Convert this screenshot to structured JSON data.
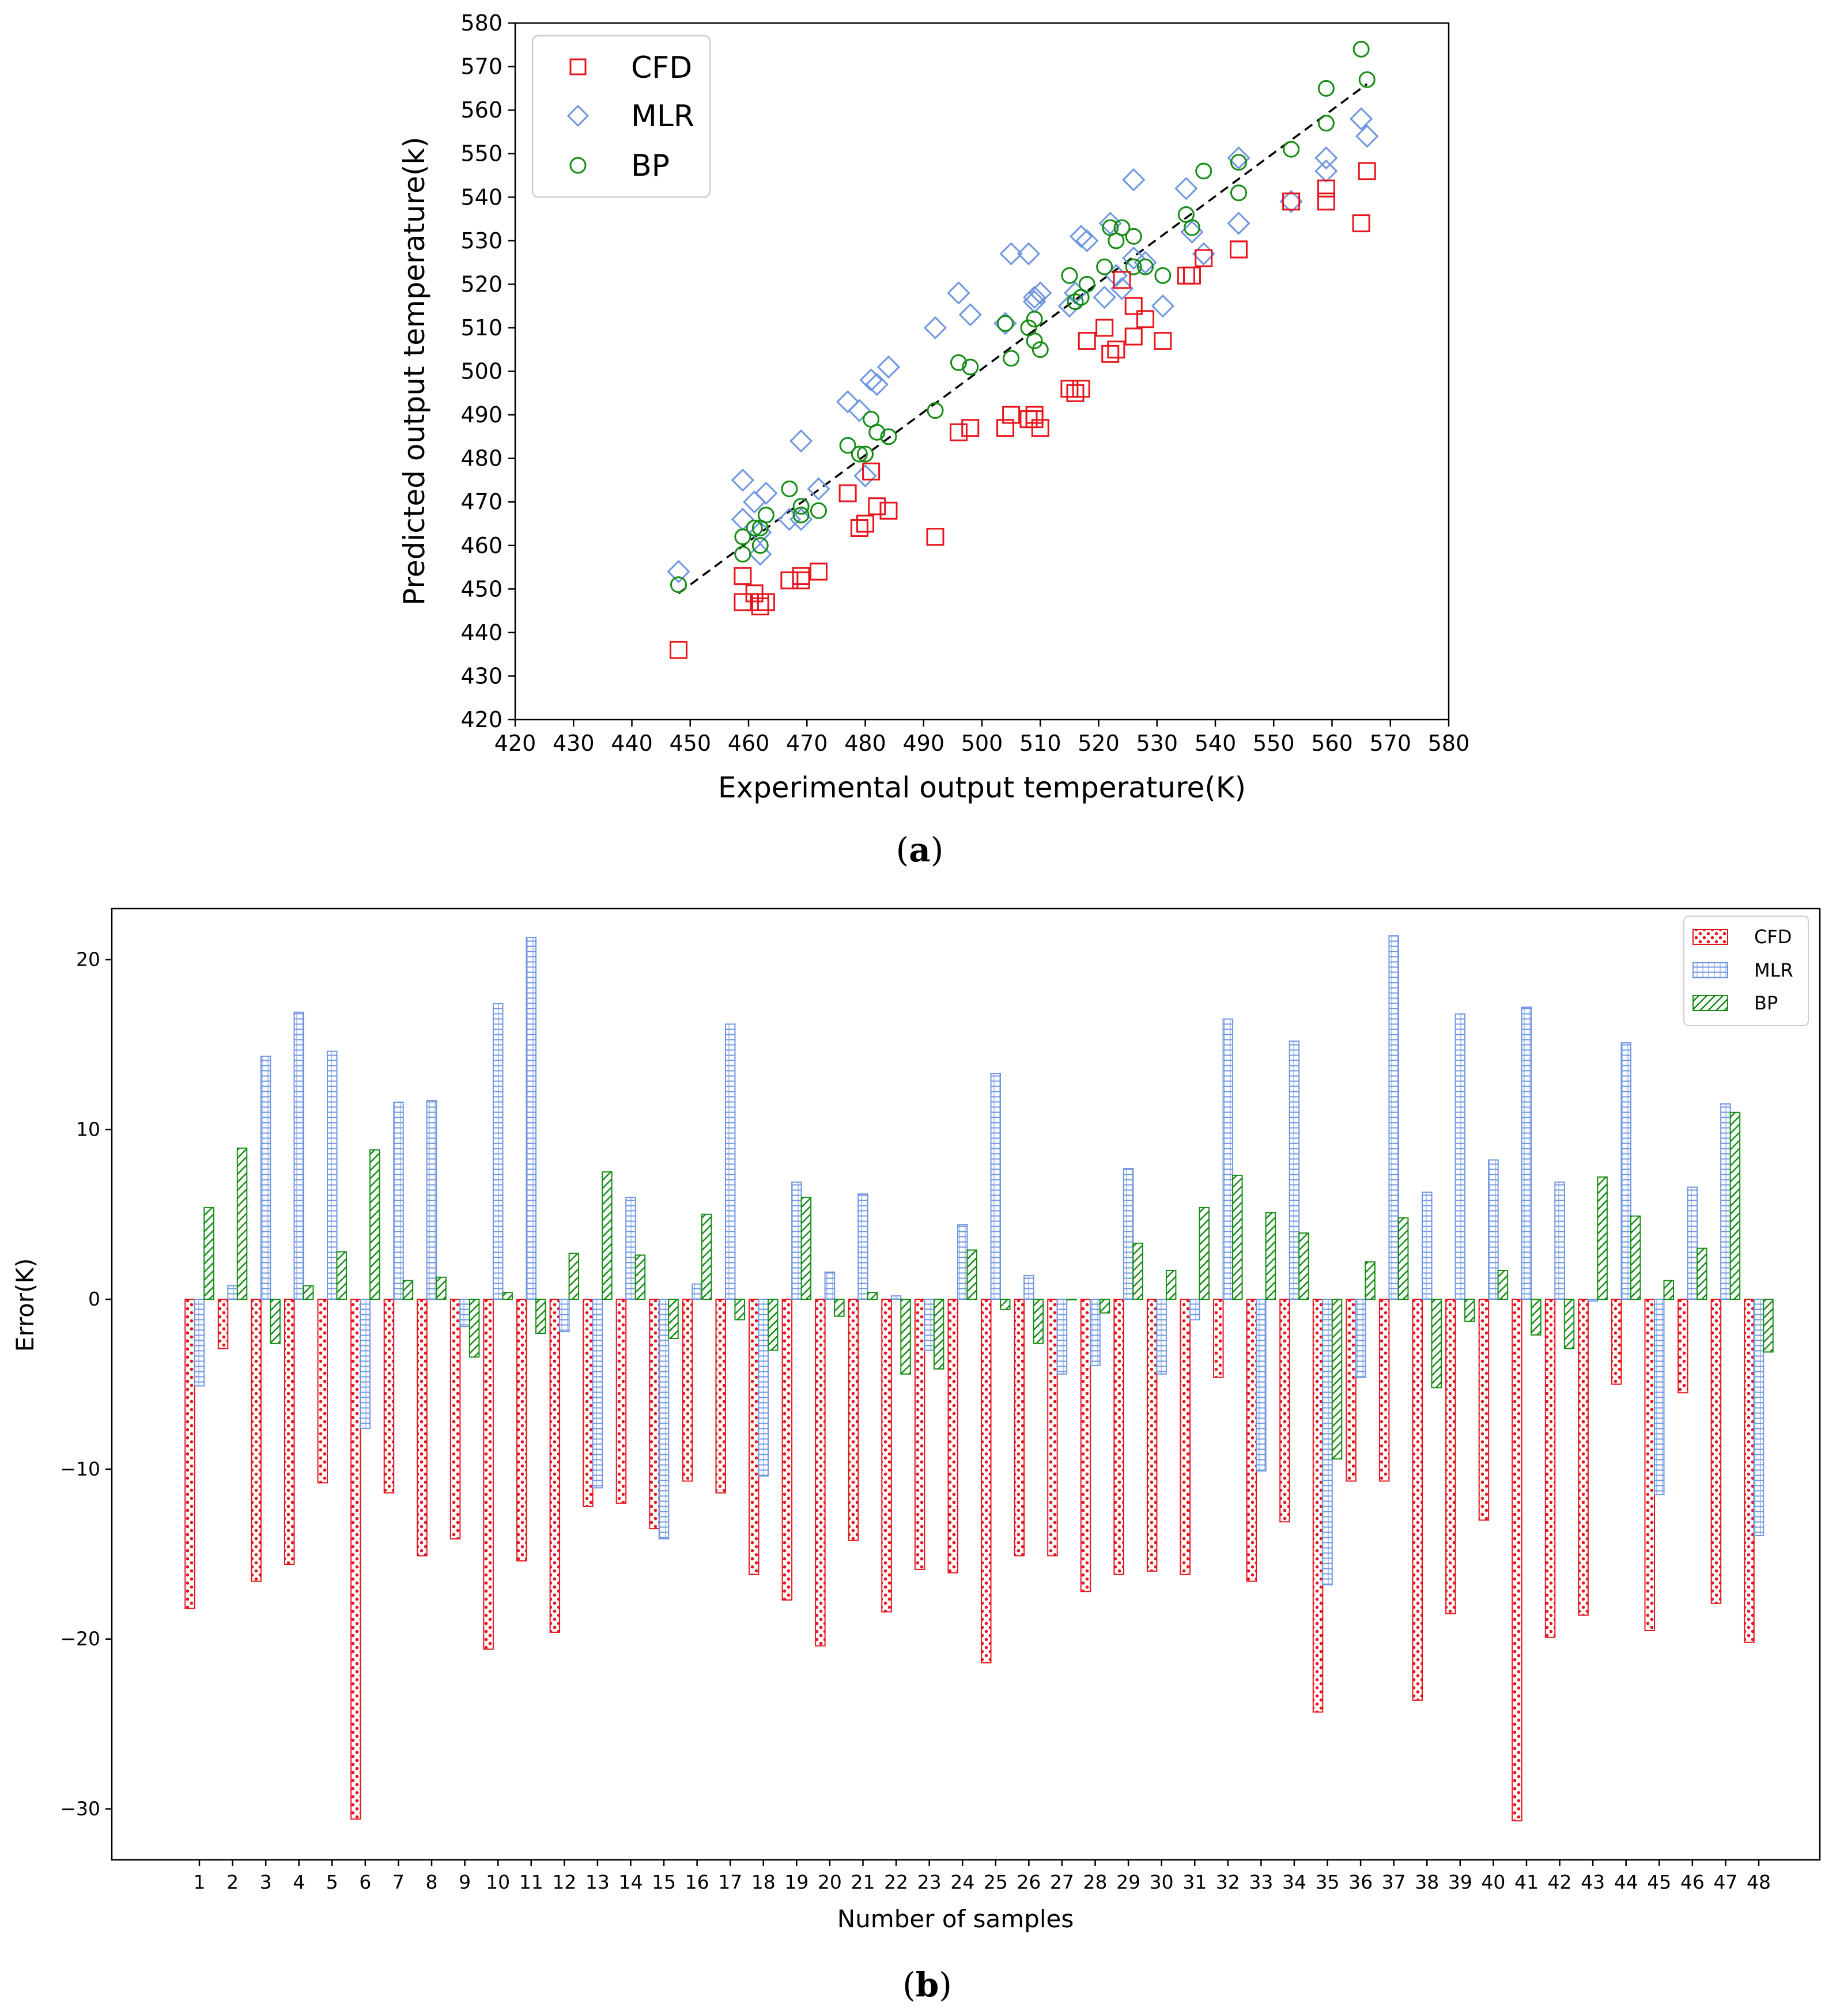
{
  "chart_data": [
    {
      "type": "scatter",
      "panel_label": "a",
      "xlabel": "Experimental output temperature(K)",
      "ylabel": "Predicted output temperature(k)",
      "xlim": [
        420,
        580
      ],
      "ylim": [
        420,
        580
      ],
      "ticks": [
        "420",
        "430",
        "440",
        "450",
        "460",
        "470",
        "480",
        "490",
        "500",
        "510",
        "520",
        "530",
        "540",
        "550",
        "560",
        "570",
        "580"
      ],
      "legend_position": "upper-left",
      "reference_line": {
        "style": "dashed",
        "color": "#000000",
        "from": [
          448,
          449
        ],
        "to": [
          566,
          566
        ]
      },
      "series": [
        {
          "name": "CFD",
          "marker": "square",
          "color": "#e8141c",
          "x": [
            448,
            459,
            459,
            461,
            462,
            462,
            463,
            467,
            469,
            469,
            472,
            477,
            479,
            480,
            481,
            482,
            484,
            492,
            496,
            498,
            504,
            505,
            508,
            509,
            509,
            510,
            515,
            516,
            517,
            518,
            521,
            522,
            523,
            524,
            526,
            526,
            528,
            531,
            535,
            536,
            538,
            544,
            544,
            553,
            559,
            559,
            565,
            566
          ],
          "y": [
            436,
            447,
            453,
            449,
            447,
            446,
            447,
            452,
            452,
            453,
            454,
            472,
            464,
            465,
            477,
            469,
            468,
            462,
            486,
            487,
            487,
            490,
            489,
            489,
            490,
            487,
            496,
            495,
            496,
            507,
            510,
            504,
            505,
            521,
            515,
            508,
            512,
            507,
            522,
            522,
            526,
            528,
            528,
            539,
            542,
            539,
            534,
            546
          ]
        },
        {
          "name": "MLR",
          "marker": "diamond",
          "color": "#6f96e0",
          "x": [
            448,
            459,
            459,
            461,
            462,
            462,
            463,
            467,
            469,
            469,
            472,
            477,
            479,
            480,
            481,
            482,
            484,
            492,
            496,
            498,
            504,
            505,
            508,
            509,
            509,
            510,
            515,
            516,
            517,
            518,
            521,
            522,
            523,
            524,
            526,
            526,
            528,
            531,
            535,
            536,
            538,
            544,
            544,
            553,
            559,
            559,
            565,
            566
          ],
          "y": [
            454,
            475,
            466,
            470,
            458,
            463,
            472,
            466,
            484,
            466,
            473,
            493,
            491,
            476,
            498,
            497,
            501,
            510,
            518,
            513,
            511,
            527,
            527,
            516,
            517,
            518,
            515,
            518,
            531,
            530,
            517,
            534,
            522,
            519,
            526,
            544,
            525,
            515,
            542,
            532,
            527,
            549,
            534,
            539,
            549,
            546,
            558,
            554
          ]
        },
        {
          "name": "BP",
          "marker": "circle",
          "color": "#148c14",
          "x": [
            448,
            459,
            459,
            461,
            462,
            462,
            463,
            467,
            469,
            469,
            472,
            477,
            479,
            480,
            481,
            482,
            484,
            492,
            496,
            498,
            504,
            505,
            508,
            509,
            509,
            510,
            515,
            516,
            517,
            518,
            521,
            522,
            523,
            524,
            526,
            526,
            528,
            531,
            535,
            536,
            538,
            544,
            544,
            553,
            559,
            559,
            565,
            566
          ],
          "y": [
            451,
            462,
            458,
            464,
            464,
            460,
            467,
            473,
            469,
            467,
            468,
            483,
            481,
            481,
            489,
            486,
            485,
            491,
            502,
            501,
            511,
            503,
            510,
            512,
            507,
            505,
            522,
            516,
            517,
            520,
            524,
            533,
            530,
            533,
            531,
            524,
            524,
            522,
            536,
            533,
            546,
            548,
            541,
            551,
            565,
            557,
            574,
            567
          ]
        }
      ]
    },
    {
      "type": "bar",
      "panel_label": "b",
      "xlabel": "Number of samples",
      "ylabel": "Error(K)",
      "ylim": [
        -33,
        23
      ],
      "yticks": [
        "20",
        "10",
        "0",
        "−10",
        "−20",
        "−30"
      ],
      "ytick_values": [
        20,
        10,
        0,
        -10,
        -20,
        -30
      ],
      "legend_position": "upper-right",
      "categories": [
        "1",
        "2",
        "3",
        "4",
        "5",
        "6",
        "7",
        "8",
        "9",
        "10",
        "11",
        "12",
        "13",
        "14",
        "15",
        "16",
        "17",
        "18",
        "19",
        "20",
        "21",
        "22",
        "23",
        "24",
        "25",
        "26",
        "27",
        "28",
        "29",
        "30",
        "31",
        "32",
        "33",
        "34",
        "35",
        "36",
        "37",
        "38",
        "39",
        "40",
        "41",
        "42",
        "43",
        "44",
        "45",
        "46",
        "47",
        "48"
      ],
      "series": [
        {
          "name": "CFD",
          "hatch": "dots",
          "color": "#e8141c",
          "values": [
            -18.2,
            -2.9,
            -16.6,
            -15.6,
            -10.8,
            -30.6,
            -11.4,
            -15.1,
            -14.1,
            -20.6,
            -15.4,
            -19.6,
            -12.2,
            -12.0,
            -13.5,
            -10.7,
            -11.4,
            -16.2,
            -17.7,
            -20.4,
            -14.2,
            -18.4,
            -15.9,
            -16.1,
            -21.4,
            -15.1,
            -15.1,
            -17.2,
            -16.2,
            -16.0,
            -16.2,
            -4.6,
            -16.6,
            -13.1,
            -24.3,
            -10.7,
            -10.7,
            -23.6,
            -18.5,
            -13.0,
            -30.7,
            -19.9,
            -18.6,
            -5.0,
            -19.5,
            -5.5,
            -17.9,
            -20.2
          ]
        },
        {
          "name": "MLR",
          "hatch": "horizontal",
          "color": "#6f96e0",
          "values": [
            -5.1,
            0.8,
            14.3,
            16.9,
            14.6,
            -7.6,
            11.6,
            11.7,
            -1.6,
            17.4,
            21.3,
            -1.9,
            -11.1,
            6.0,
            -14.1,
            0.9,
            16.2,
            -10.4,
            6.9,
            1.6,
            6.2,
            0.2,
            -3.0,
            4.4,
            13.3,
            1.4,
            -4.4,
            -3.9,
            7.7,
            -4.4,
            -1.2,
            16.5,
            -10.1,
            15.2,
            -16.8,
            -4.6,
            21.4,
            6.3,
            16.8,
            8.2,
            17.2,
            6.9,
            -0.1,
            15.1,
            -11.5,
            6.6,
            11.5,
            -13.9
          ]
        },
        {
          "name": "BP",
          "hatch": "diagonal",
          "color": "#148c14",
          "values": [
            5.4,
            8.9,
            -2.6,
            0.8,
            2.8,
            8.8,
            1.1,
            1.3,
            -3.4,
            0.4,
            -2.0,
            2.7,
            7.5,
            2.6,
            -2.3,
            5.0,
            -1.2,
            -3.0,
            6.0,
            -1.0,
            0.4,
            -4.4,
            -4.1,
            2.9,
            -0.6,
            -2.6,
            0.0,
            -0.8,
            3.3,
            1.7,
            5.4,
            7.3,
            5.1,
            3.9,
            -9.4,
            2.2,
            4.8,
            -5.2,
            -1.3,
            1.7,
            -2.1,
            -2.9,
            7.2,
            4.9,
            1.1,
            3.0,
            11.0,
            -3.1
          ]
        }
      ]
    }
  ],
  "captions": {
    "a": "a",
    "b": "b"
  }
}
